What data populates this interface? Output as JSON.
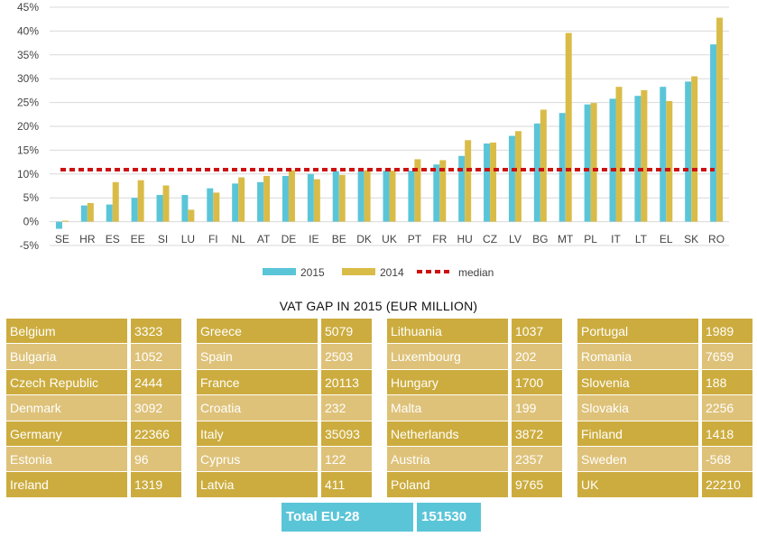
{
  "chart_data": {
    "type": "bar",
    "categories": [
      "SE",
      "HR",
      "ES",
      "EE",
      "SI",
      "LU",
      "FI",
      "NL",
      "AT",
      "DE",
      "IE",
      "BE",
      "DK",
      "UK",
      "PT",
      "FR",
      "HU",
      "CZ",
      "LV",
      "BG",
      "MT",
      "PL",
      "IT",
      "LT",
      "EL",
      "SK",
      "RO"
    ],
    "series": [
      {
        "name": "2015",
        "color": "#5bc5d8",
        "values": [
          -1.5,
          3.4,
          3.6,
          5.0,
          5.6,
          5.6,
          7.0,
          8.0,
          8.3,
          9.6,
          10.0,
          10.6,
          10.6,
          10.7,
          10.7,
          12.0,
          13.8,
          16.4,
          18.0,
          20.6,
          22.8,
          24.6,
          25.8,
          26.4,
          28.3,
          29.4,
          37.2
        ]
      },
      {
        "name": "2014",
        "color": "#d9bc48",
        "values": [
          0.2,
          3.9,
          8.3,
          8.7,
          7.6,
          2.5,
          6.1,
          9.3,
          9.6,
          10.8,
          8.9,
          9.8,
          10.8,
          10.7,
          13.1,
          12.9,
          17.1,
          16.6,
          19.0,
          23.5,
          39.6,
          24.9,
          28.3,
          27.6,
          25.3,
          30.5,
          42.8
        ]
      }
    ],
    "median": {
      "name": "median",
      "value": 10.9,
      "color": "#cc1111"
    },
    "yticks": [
      "45%",
      "40%",
      "35%",
      "30%",
      "25%",
      "20%",
      "15%",
      "10%",
      "5%",
      "0%",
      "-5%"
    ],
    "ylim": [
      -5,
      45
    ],
    "legend": [
      "2015",
      "2014",
      "median"
    ],
    "legend_position": "bottom"
  },
  "table": {
    "title": "VAT GAP IN 2015 (EUR MILLION)",
    "columns": [
      [
        [
          "Belgium",
          "3323"
        ],
        [
          "Bulgaria",
          "1052"
        ],
        [
          "Czech Republic",
          "2444"
        ],
        [
          "Denmark",
          "3092"
        ],
        [
          "Germany",
          "22366"
        ],
        [
          "Estonia",
          "96"
        ],
        [
          "Ireland",
          "1319"
        ]
      ],
      [
        [
          "Greece",
          "5079"
        ],
        [
          "Spain",
          "2503"
        ],
        [
          "France",
          "20113"
        ],
        [
          "Croatia",
          "232"
        ],
        [
          "Italy",
          "35093"
        ],
        [
          "Cyprus",
          "122"
        ],
        [
          "Latvia",
          "411"
        ]
      ],
      [
        [
          "Lithuania",
          "1037"
        ],
        [
          "Luxembourg",
          "202"
        ],
        [
          "Hungary",
          "1700"
        ],
        [
          "Malta",
          "199"
        ],
        [
          "Netherlands",
          "3872"
        ],
        [
          "Austria",
          "2357"
        ],
        [
          "Poland",
          "9765"
        ]
      ],
      [
        [
          "Portugal",
          "1989"
        ],
        [
          "Romania",
          "7659"
        ],
        [
          "Slovenia",
          "188"
        ],
        [
          "Slovakia",
          "2256"
        ],
        [
          "Finland",
          "1418"
        ],
        [
          "Sweden",
          "-568"
        ],
        [
          "UK",
          "22210"
        ]
      ]
    ],
    "total_label": "Total EU-28",
    "total_value": "151530",
    "row_colors": [
      "#ccac3e",
      "#dec279"
    ]
  }
}
